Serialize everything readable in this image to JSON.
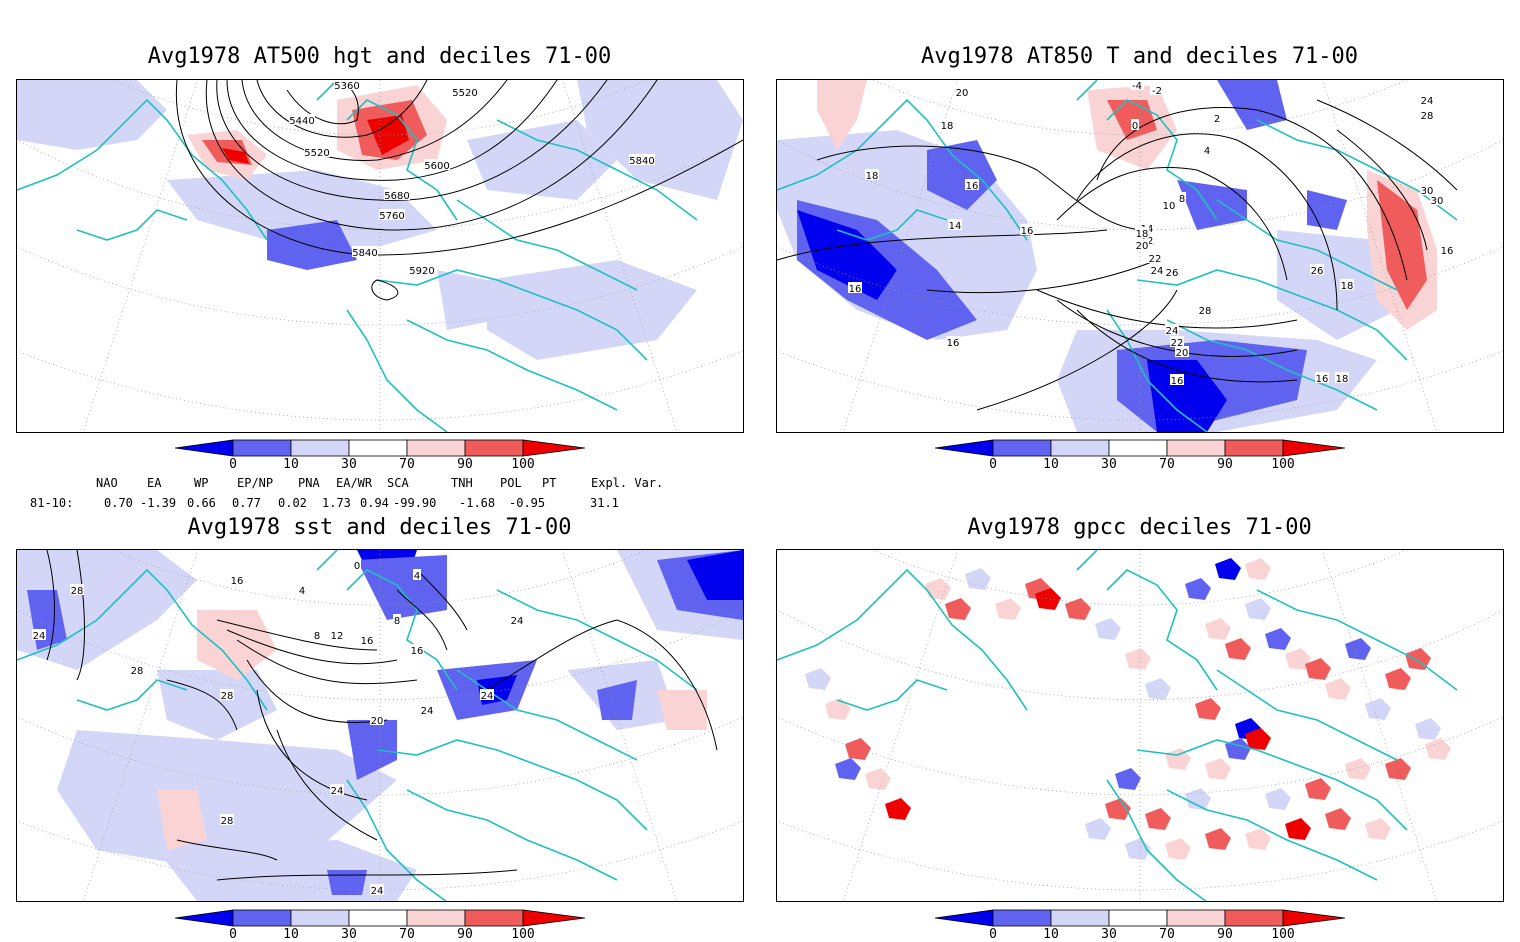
{
  "panels": [
    {
      "title": "Avg1978 AT500 hgt and deciles 71-00",
      "contour_labels": [
        "5360",
        "5440",
        "5520",
        "5520",
        "5600",
        "5680",
        "5760",
        "5840",
        "5840",
        "5920"
      ]
    },
    {
      "title": "Avg1978 AT850 T and deciles 71-00",
      "contour_labels": [
        "20",
        "18",
        "18",
        "16",
        "16",
        "16",
        "16",
        "14",
        "14",
        "12",
        "10",
        "8",
        "-4",
        "-2",
        "0",
        "2",
        "4",
        "18",
        "20",
        "22",
        "24",
        "26",
        "26",
        "28",
        "24",
        "22",
        "20",
        "16",
        "18",
        "18",
        "16",
        "24",
        "28",
        "30",
        "30",
        "16"
      ]
    },
    {
      "title": "Avg1978 sst and deciles 71-00",
      "contour_labels": [
        "28",
        "24",
        "28",
        "28",
        "16",
        "4",
        "8",
        "12",
        "16",
        "20",
        "24",
        "24",
        "16",
        "24",
        "28",
        "24",
        "0",
        "4",
        "8",
        "24"
      ]
    },
    {
      "title": "Avg1978 gpcc deciles 71-00",
      "contour_labels": []
    }
  ],
  "colorbar": {
    "ticks": [
      "0",
      "10",
      "30",
      "70",
      "90",
      "100"
    ],
    "colors": [
      "#0000ee",
      "#5f63f0",
      "#d4d6f8",
      "#ffffff",
      "#fad4d4",
      "#f05c5c",
      "#ee0000"
    ]
  },
  "indices": {
    "headers": [
      "NAO",
      "EA",
      "WP",
      "EP/NP",
      "PNA",
      "EA/WR",
      "SCA",
      "TNH",
      "POL",
      "PT",
      "Expl. Var."
    ],
    "row_label": "81-10:",
    "values": [
      "0.70",
      "-1.39",
      "0.66",
      "0.77",
      "0.02",
      "1.73",
      "0.94",
      "-99.90",
      "-1.68",
      "-0.95",
      "31.1"
    ]
  },
  "colors": {
    "coast": "#20c0c0",
    "contour": "#000000",
    "grid": "#999999"
  }
}
